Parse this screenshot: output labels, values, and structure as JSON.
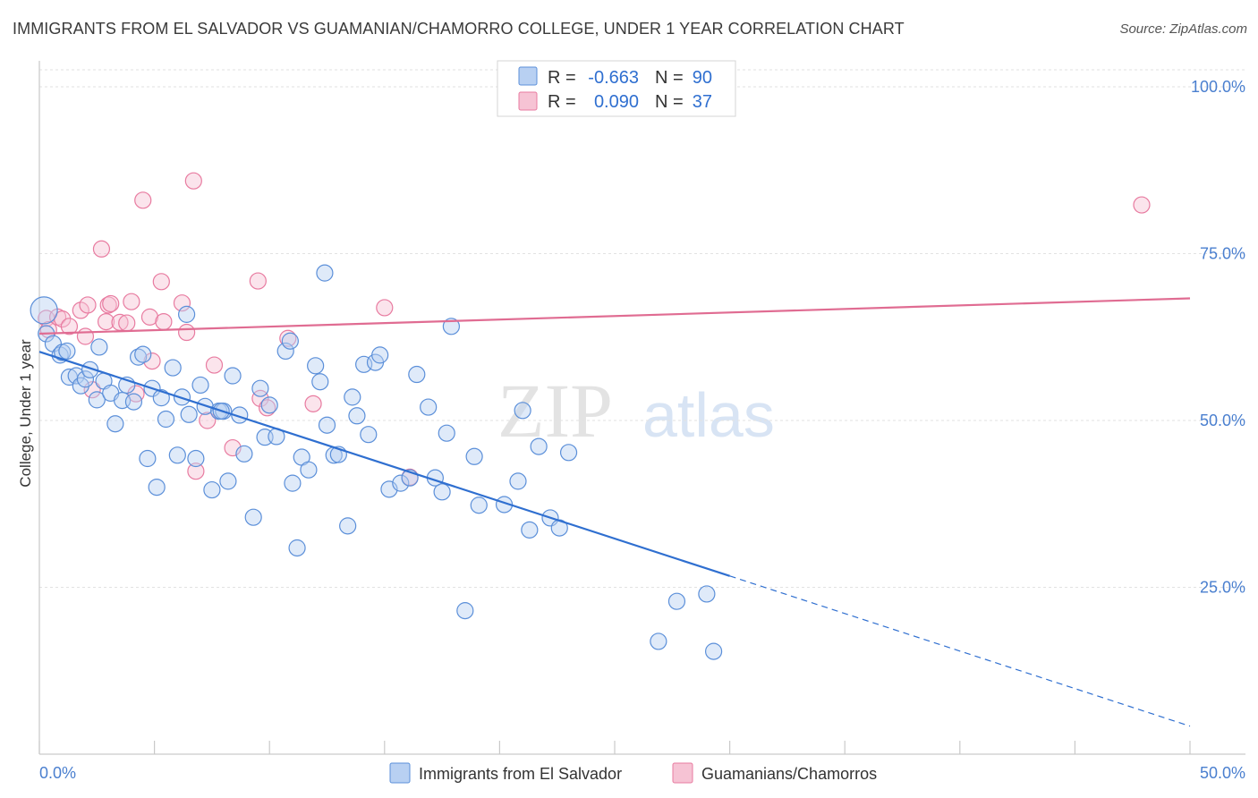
{
  "header": {
    "title": "IMMIGRANTS FROM EL SALVADOR VS GUAMANIAN/CHAMORRO COLLEGE, UNDER 1 YEAR CORRELATION CHART",
    "source": "Source: ZipAtlas.com"
  },
  "watermark": {
    "zip": "ZIP",
    "atlas": "atlas"
  },
  "stats": {
    "r_label": "R =",
    "n_label": "N =",
    "rows": [
      {
        "r": "-0.663",
        "n": "90"
      },
      {
        "r": "0.090",
        "n": "37"
      }
    ]
  },
  "chart_data": {
    "type": "scatter",
    "title": "IMMIGRANTS FROM EL SALVADOR VS GUAMANIAN/CHAMORRO COLLEGE, UNDER 1 YEAR CORRELATION CHART",
    "xlabel": "",
    "ylabel": "College, Under 1 year",
    "xlim": [
      0,
      50
    ],
    "ylim": [
      0,
      105
    ],
    "x_tick_labels": [
      "0.0%",
      "50.0%"
    ],
    "y_tick_values": [
      25,
      50,
      75,
      100
    ],
    "y_tick_labels": [
      "25.0%",
      "50.0%",
      "75.0%",
      "100.0%"
    ],
    "grid": true,
    "legend_position": "bottom-center",
    "colors": {
      "blue": "#5b8fd9",
      "blue_fill": "#b8d0f2",
      "blue_line": "#2f6fd0",
      "pink": "#e87ba0",
      "pink_fill": "#f6c3d4",
      "pink_line": "#e06c92"
    },
    "series": [
      {
        "name": "Immigrants from El Salvador",
        "color": "#5b8fd9",
        "trend": {
          "x0": 0,
          "y0": 60.3,
          "x1": 30,
          "y1": 26.7,
          "dashed_to_x": 50,
          "dashed_to_y": 4.2
        },
        "points": [
          [
            0.2,
            66.5
          ],
          [
            0.3,
            63.0
          ],
          [
            0.6,
            61.5
          ],
          [
            0.9,
            59.8
          ],
          [
            1.0,
            60.2
          ],
          [
            1.2,
            60.4
          ],
          [
            1.3,
            56.5
          ],
          [
            1.6,
            56.7
          ],
          [
            1.8,
            55.2
          ],
          [
            2.0,
            56.2
          ],
          [
            2.2,
            57.6
          ],
          [
            2.5,
            53.1
          ],
          [
            2.6,
            61.0
          ],
          [
            2.8,
            55.9
          ],
          [
            3.1,
            54.1
          ],
          [
            3.3,
            49.5
          ],
          [
            3.6,
            53.0
          ],
          [
            3.8,
            55.3
          ],
          [
            4.1,
            52.8
          ],
          [
            4.3,
            59.5
          ],
          [
            4.5,
            59.9
          ],
          [
            4.7,
            44.3
          ],
          [
            4.9,
            54.8
          ],
          [
            5.1,
            40.0
          ],
          [
            5.3,
            53.4
          ],
          [
            5.5,
            50.2
          ],
          [
            5.8,
            57.9
          ],
          [
            6.0,
            44.8
          ],
          [
            6.2,
            53.5
          ],
          [
            6.4,
            65.9
          ],
          [
            6.5,
            50.9
          ],
          [
            6.8,
            44.3
          ],
          [
            7.0,
            55.3
          ],
          [
            7.2,
            52.1
          ],
          [
            7.5,
            39.6
          ],
          [
            7.8,
            51.4
          ],
          [
            8.0,
            51.4
          ],
          [
            8.2,
            40.9
          ],
          [
            8.4,
            56.7
          ],
          [
            8.7,
            50.8
          ],
          [
            8.9,
            45.0
          ],
          [
            9.3,
            35.5
          ],
          [
            9.6,
            54.8
          ],
          [
            9.8,
            47.5
          ],
          [
            10.0,
            52.3
          ],
          [
            10.3,
            47.6
          ],
          [
            10.7,
            60.4
          ],
          [
            10.9,
            61.9
          ],
          [
            11.0,
            40.6
          ],
          [
            11.2,
            30.9
          ],
          [
            11.4,
            44.5
          ],
          [
            11.7,
            42.6
          ],
          [
            12.0,
            58.2
          ],
          [
            12.2,
            55.8
          ],
          [
            12.4,
            72.1
          ],
          [
            12.5,
            49.3
          ],
          [
            12.8,
            44.8
          ],
          [
            13.0,
            44.9
          ],
          [
            13.4,
            34.2
          ],
          [
            13.6,
            53.5
          ],
          [
            13.8,
            50.7
          ],
          [
            14.1,
            58.4
          ],
          [
            14.3,
            47.9
          ],
          [
            14.6,
            58.7
          ],
          [
            14.8,
            59.8
          ],
          [
            15.2,
            39.7
          ],
          [
            15.7,
            40.6
          ],
          [
            16.1,
            41.4
          ],
          [
            16.4,
            56.9
          ],
          [
            16.9,
            52.0
          ],
          [
            17.2,
            41.4
          ],
          [
            17.5,
            39.3
          ],
          [
            17.7,
            48.1
          ],
          [
            17.9,
            64.1
          ],
          [
            18.5,
            21.5
          ],
          [
            18.9,
            44.6
          ],
          [
            19.1,
            37.3
          ],
          [
            20.2,
            37.4
          ],
          [
            20.8,
            40.9
          ],
          [
            21.0,
            51.5
          ],
          [
            21.3,
            33.6
          ],
          [
            21.7,
            46.1
          ],
          [
            22.2,
            35.4
          ],
          [
            22.6,
            33.9
          ],
          [
            23.0,
            45.2
          ],
          [
            26.9,
            16.9
          ],
          [
            27.7,
            22.9
          ],
          [
            29.0,
            24.0
          ],
          [
            29.3,
            15.4
          ],
          [
            7.9,
            51.4
          ]
        ]
      },
      {
        "name": "Guamanians/Chamorros",
        "color": "#e87ba0",
        "trend": {
          "x0": 0,
          "y0": 63.0,
          "x1": 50,
          "y1": 68.3
        },
        "points": [
          [
            0.3,
            65.3
          ],
          [
            0.4,
            63.6
          ],
          [
            0.8,
            65.5
          ],
          [
            1.0,
            65.2
          ],
          [
            1.3,
            64.1
          ],
          [
            1.8,
            66.5
          ],
          [
            2.0,
            62.6
          ],
          [
            2.1,
            67.3
          ],
          [
            2.3,
            54.6
          ],
          [
            2.7,
            75.7
          ],
          [
            2.9,
            64.8
          ],
          [
            3.0,
            67.3
          ],
          [
            3.1,
            67.5
          ],
          [
            3.5,
            64.7
          ],
          [
            3.8,
            64.6
          ],
          [
            4.0,
            67.8
          ],
          [
            4.2,
            54.0
          ],
          [
            4.5,
            83.0
          ],
          [
            4.8,
            65.5
          ],
          [
            4.9,
            58.9
          ],
          [
            5.3,
            70.8
          ],
          [
            5.4,
            64.8
          ],
          [
            6.2,
            67.6
          ],
          [
            6.4,
            63.2
          ],
          [
            6.7,
            85.9
          ],
          [
            6.8,
            42.4
          ],
          [
            7.3,
            50.0
          ],
          [
            7.6,
            58.3
          ],
          [
            8.4,
            45.9
          ],
          [
            9.5,
            70.9
          ],
          [
            9.6,
            53.3
          ],
          [
            9.9,
            51.9
          ],
          [
            10.8,
            62.3
          ],
          [
            11.9,
            52.5
          ],
          [
            15.0,
            66.9
          ],
          [
            16.1,
            41.5
          ],
          [
            47.9,
            82.3
          ]
        ]
      }
    ]
  },
  "legend": {
    "items": [
      {
        "label": "Immigrants from El Salvador"
      },
      {
        "label": "Guamanians/Chamorros"
      }
    ]
  }
}
